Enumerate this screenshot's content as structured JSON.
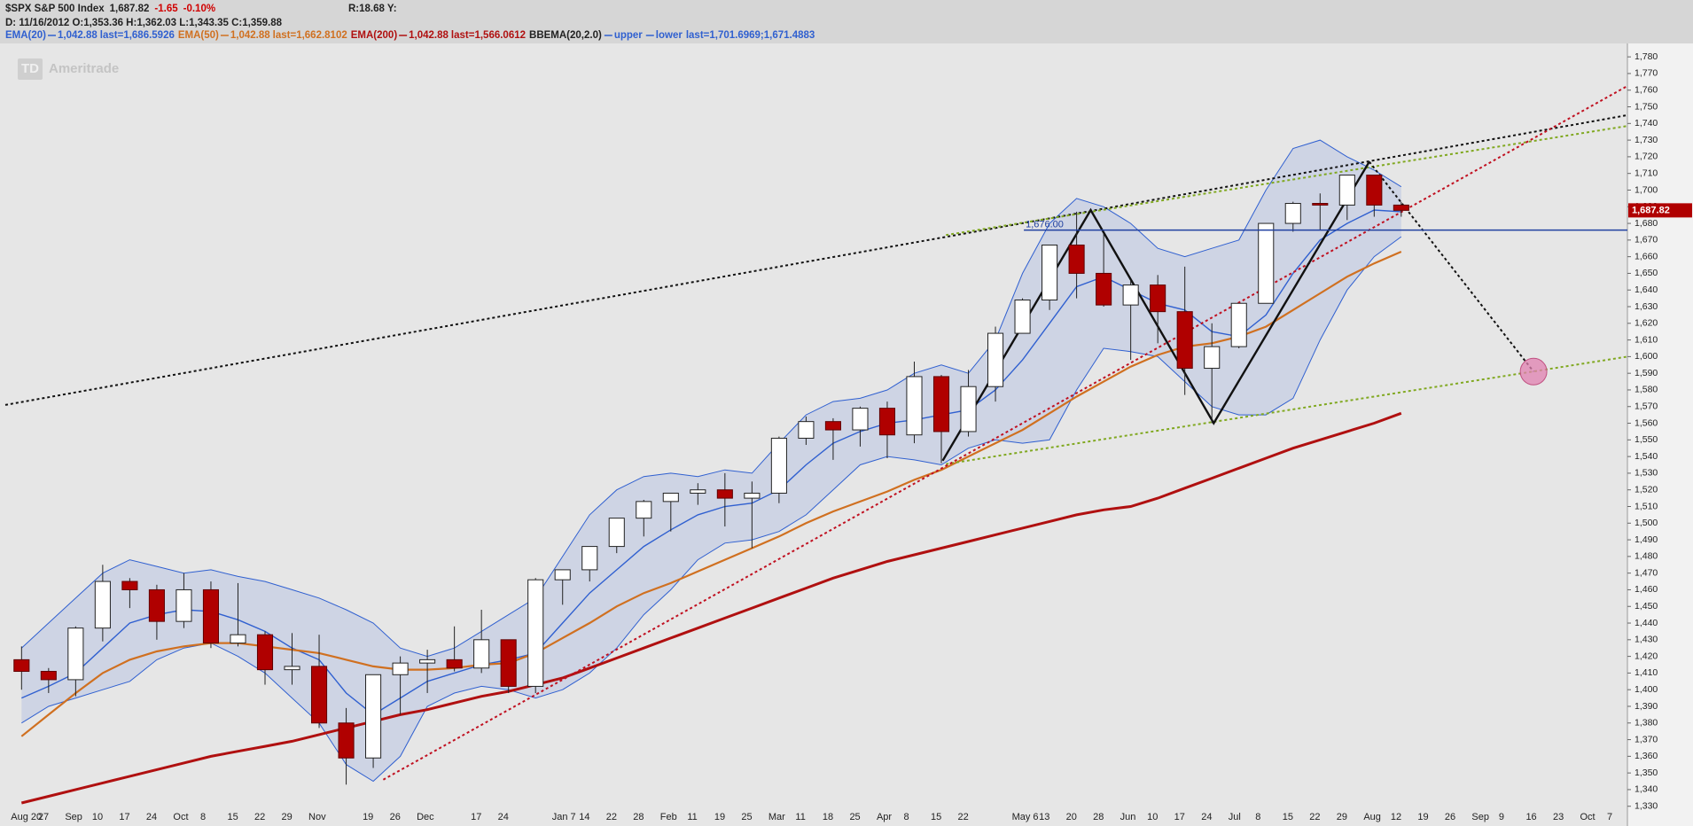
{
  "header": {
    "symbol": "$SPX S&P 500 Index",
    "last": "1,687.82",
    "change": "-1.65",
    "change_pct": "-0.10%",
    "extra": "R:18.68 Y:",
    "detail": "D: 11/16/2012 O:1,353.36 H:1,362.03 L:1,343.35 C:1,359.88"
  },
  "watermark": {
    "logo": "TD",
    "text": "Ameritrade"
  },
  "chart_data": {
    "type": "candlestick",
    "categories": [
      "Aug 20",
      "27",
      "Sep",
      "10",
      "17",
      "24",
      "Oct",
      "8",
      "15",
      "22",
      "29",
      "Nov",
      null,
      "19",
      "26",
      "Dec",
      null,
      "17",
      "24",
      null,
      "Jan 7",
      "14",
      "22",
      "28",
      "Feb",
      "11",
      "19",
      "25",
      "Mar",
      "11",
      "18",
      "25",
      "Apr",
      "8",
      "15",
      "22",
      null,
      "May 6",
      "13",
      "20",
      "28",
      "Jun",
      "10",
      "17",
      "24",
      "Jul",
      "8",
      "15",
      "22",
      "29",
      "Aug",
      "12",
      "19",
      "26",
      "Sep",
      "9",
      "16",
      "23",
      "Oct",
      "7"
    ],
    "xlim": [
      -0.6,
      59.36
    ],
    "ylim": [
      1324,
      1787
    ],
    "yticks": [
      {
        "value": 1330,
        "label": "1,330"
      },
      {
        "value": 1340,
        "label": "1,340"
      },
      {
        "value": 1350,
        "label": "1,350"
      },
      {
        "value": 1360,
        "label": "1,360"
      },
      {
        "value": 1370,
        "label": "1,370"
      },
      {
        "value": 1380,
        "label": "1,380"
      },
      {
        "value": 1390,
        "label": "1,390"
      },
      {
        "value": 1400,
        "label": "1,400"
      },
      {
        "value": 1410,
        "label": "1,410"
      },
      {
        "value": 1420,
        "label": "1,420"
      },
      {
        "value": 1430,
        "label": "1,430"
      },
      {
        "value": 1440,
        "label": "1,440"
      },
      {
        "value": 1450,
        "label": "1,450"
      },
      {
        "value": 1460,
        "label": "1,460"
      },
      {
        "value": 1470,
        "label": "1,470"
      },
      {
        "value": 1480,
        "label": "1,480"
      },
      {
        "value": 1490,
        "label": "1,490"
      },
      {
        "value": 1500,
        "label": "1,500"
      },
      {
        "value": 1510,
        "label": "1,510"
      },
      {
        "value": 1520,
        "label": "1,520"
      },
      {
        "value": 1530,
        "label": "1,530"
      },
      {
        "value": 1540,
        "label": "1,540"
      },
      {
        "value": 1550,
        "label": "1,550"
      },
      {
        "value": 1560,
        "label": "1,560"
      },
      {
        "value": 1570,
        "label": "1,570"
      },
      {
        "value": 1580,
        "label": "1,580"
      },
      {
        "value": 1590,
        "label": "1,590"
      },
      {
        "value": 1600,
        "label": "1,600"
      },
      {
        "value": 1610,
        "label": "1,610"
      },
      {
        "value": 1620,
        "label": "1,620"
      },
      {
        "value": 1630,
        "label": "1,630"
      },
      {
        "value": 1640,
        "label": "1,640"
      },
      {
        "value": 1650,
        "label": "1,650"
      },
      {
        "value": 1660,
        "label": "1,660"
      },
      {
        "value": 1670,
        "label": "1,670"
      },
      {
        "value": 1680,
        "label": "1,680"
      },
      {
        "value": 1690,
        "label": "1,690"
      },
      {
        "value": 1700,
        "label": "1,700"
      },
      {
        "value": 1710,
        "label": "1,710"
      },
      {
        "value": 1720,
        "label": "1,720"
      },
      {
        "value": 1730,
        "label": "1,730"
      },
      {
        "value": 1740,
        "label": "1,740"
      },
      {
        "value": 1750,
        "label": "1,750"
      },
      {
        "value": 1760,
        "label": "1,760"
      },
      {
        "value": 1770,
        "label": "1,770"
      },
      {
        "value": 1780,
        "label": "1,780"
      }
    ],
    "up_color": "#ffffff",
    "down_color": "#b00000",
    "ohlc": {
      "open": [
        1418,
        1411,
        1406,
        1437,
        1465,
        1460,
        1441,
        1460,
        1428,
        1433,
        1412,
        1414,
        1380,
        1359,
        1409,
        1416,
        1418,
        1413,
        1430,
        1402,
        1466,
        1472,
        1486,
        1503,
        1513,
        1518,
        1520,
        1515,
        1518,
        1551,
        1561,
        1556,
        1569,
        1553,
        1588,
        1555,
        1582,
        1614,
        1634,
        1667,
        1650,
        1631,
        1643,
        1627,
        1593,
        1606,
        1632,
        1680,
        1692,
        1691,
        1709,
        1691,
        null,
        null,
        null,
        null,
        null,
        null,
        null,
        null
      ],
      "high": [
        1426,
        1413,
        1438,
        1475,
        1467,
        1463,
        1470,
        1465,
        1464,
        1435,
        1434,
        1433,
        1389,
        1409,
        1420,
        1424,
        1438,
        1448,
        1430,
        1467,
        1472,
        1485,
        1503,
        1514,
        1518,
        1524,
        1530,
        1525,
        1552,
        1564,
        1563,
        1570,
        1573,
        1597,
        1589,
        1592,
        1618,
        1635,
        1667,
        1687,
        1674,
        1646,
        1649,
        1654,
        1620,
        1632,
        1680,
        1693,
        1698,
        1709,
        1709,
        1693,
        null,
        null,
        null,
        null,
        null,
        null,
        null,
        null
      ],
      "low": [
        1400,
        1398,
        1396,
        1429,
        1449,
        1430,
        1437,
        1425,
        1426,
        1403,
        1403,
        1377,
        1343,
        1353,
        1385,
        1398,
        1411,
        1410,
        1398,
        1398,
        1451,
        1465,
        1482,
        1492,
        1495,
        1511,
        1498,
        1485,
        1512,
        1547,
        1538,
        1546,
        1539,
        1548,
        1536,
        1552,
        1573,
        1614,
        1628,
        1635,
        1630,
        1598,
        1608,
        1577,
        1560,
        1605,
        1632,
        1675,
        1676,
        1682,
        1684,
        1684,
        null,
        null,
        null,
        null,
        null,
        null,
        null,
        null
      ],
      "close": [
        1411,
        1406,
        1437,
        1465,
        1460,
        1441,
        1460,
        1428,
        1433,
        1412,
        1414,
        1380,
        1359,
        1409,
        1416,
        1418,
        1413,
        1430,
        1402,
        1466,
        1472,
        1486,
        1503,
        1513,
        1518,
        1520,
        1515,
        1518,
        1551,
        1561,
        1556,
        1569,
        1553,
        1588,
        1555,
        1582,
        1614,
        1634,
        1667,
        1650,
        1631,
        1643,
        1627,
        1593,
        1606,
        1632,
        1680,
        1692,
        1691,
        1709,
        1691,
        1687.82,
        null,
        null,
        null,
        null,
        null,
        null,
        null,
        null
      ]
    },
    "series": [
      {
        "name": "EMA(20)",
        "param": "1,042.88",
        "last": "last=1,686.5926",
        "color": "#3060d0",
        "values": [
          1395,
          1402,
          1410,
          1425,
          1440,
          1445,
          1448,
          1447,
          1442,
          1435,
          1425,
          1418,
          1398,
          1385,
          1395,
          1405,
          1410,
          1415,
          1418,
          1422,
          1440,
          1458,
          1472,
          1486,
          1496,
          1505,
          1510,
          1512,
          1520,
          1535,
          1548,
          1555,
          1560,
          1562,
          1565,
          1568,
          1580,
          1598,
          1620,
          1642,
          1648,
          1640,
          1632,
          1628,
          1615,
          1612,
          1625,
          1650,
          1670,
          1680,
          1688,
          1687,
          null,
          null,
          null,
          null,
          null,
          null,
          null,
          null
        ]
      },
      {
        "name": "EMA(50)",
        "param": "1,042.88",
        "last": "last=1,662.8102",
        "color": "#d07020",
        "values": [
          1372,
          1385,
          1398,
          1410,
          1418,
          1423,
          1426,
          1428,
          1428,
          1426,
          1424,
          1422,
          1418,
          1414,
          1412,
          1412,
          1413,
          1415,
          1416,
          1422,
          1431,
          1440,
          1450,
          1458,
          1464,
          1471,
          1478,
          1485,
          1492,
          1500,
          1507,
          1513,
          1519,
          1526,
          1532,
          1540,
          1548,
          1556,
          1566,
          1576,
          1585,
          1594,
          1601,
          1606,
          1608,
          1612,
          1618,
          1628,
          1638,
          1648,
          1656,
          1663,
          null,
          null,
          null,
          null,
          null,
          null,
          null,
          null
        ]
      },
      {
        "name": "EMA(200)",
        "param": "1,042.88",
        "last": "last=1,566.0612",
        "color": "#b01010",
        "values": [
          1332,
          1336,
          1340,
          1344,
          1348,
          1352,
          1356,
          1360,
          1363,
          1366,
          1369,
          1373,
          1377,
          1381,
          1385,
          1388,
          1392,
          1396,
          1399,
          1403,
          1407,
          1413,
          1419,
          1425,
          1431,
          1437,
          1443,
          1449,
          1455,
          1461,
          1467,
          1472,
          1477,
          1481,
          1485,
          1489,
          1493,
          1497,
          1501,
          1505,
          1508,
          1510,
          1515,
          1521,
          1527,
          1533,
          1539,
          1545,
          1550,
          1555,
          1560,
          1566,
          null,
          null,
          null,
          null,
          null,
          null,
          null,
          null
        ]
      }
    ],
    "bands": {
      "name": "BBEMA(20,2.0)",
      "last": "last=1,701.6969;1,671.4883",
      "fill": "#c8d0e4",
      "series": [
        {
          "name": "upper",
          "color": "#3060d0",
          "values": [
            1425,
            1440,
            1455,
            1470,
            1478,
            1474,
            1470,
            1472,
            1468,
            1465,
            1460,
            1455,
            1448,
            1440,
            1425,
            1420,
            1425,
            1435,
            1445,
            1455,
            1480,
            1505,
            1520,
            1528,
            1530,
            1528,
            1532,
            1530,
            1548,
            1565,
            1573,
            1575,
            1580,
            1590,
            1595,
            1590,
            1610,
            1650,
            1680,
            1695,
            1690,
            1680,
            1665,
            1660,
            1665,
            1670,
            1700,
            1725,
            1730,
            1720,
            1712,
            1702,
            null,
            null,
            null,
            null,
            null,
            null,
            null,
            null
          ]
        },
        {
          "name": "lower",
          "color": "#3060d0",
          "values": [
            1380,
            1390,
            1395,
            1400,
            1405,
            1418,
            1425,
            1428,
            1420,
            1410,
            1395,
            1380,
            1355,
            1345,
            1360,
            1390,
            1398,
            1402,
            1400,
            1395,
            1400,
            1410,
            1425,
            1445,
            1460,
            1478,
            1488,
            1490,
            1495,
            1505,
            1520,
            1535,
            1540,
            1538,
            1535,
            1545,
            1550,
            1548,
            1550,
            1580,
            1605,
            1603,
            1600,
            1585,
            1570,
            1565,
            1565,
            1575,
            1610,
            1640,
            1660,
            1672,
            null,
            null,
            null,
            null,
            null,
            null,
            null,
            null
          ]
        }
      ]
    },
    "lines": [
      {
        "color": "#111111",
        "dashed": true,
        "x": [
          -0.6,
          59.36
        ],
        "y": [
          1571,
          1745
        ]
      },
      {
        "color": "#80a820",
        "dashed": true,
        "x": [
          34.17,
          59.36
        ],
        "y": [
          1673,
          1738.5
        ]
      },
      {
        "color": "#80a820",
        "dashed": true,
        "x": [
          34.17,
          59.36
        ],
        "y": [
          1535.5,
          1600
        ]
      },
      {
        "color": "#c01020",
        "dashed": true,
        "x": [
          13.37,
          59.36
        ],
        "y": [
          1346,
          1762.5
        ]
      },
      {
        "color": "#111111",
        "dashed": true,
        "x": [
          49.82,
          55.89
        ],
        "y": [
          1717,
          1591
        ]
      },
      {
        "color": "#111111",
        "dashed": false,
        "x": [
          34.05,
          39.52,
          44.07,
          49.82
        ],
        "y": [
          1537.5,
          1688,
          1560,
          1717
        ]
      }
    ],
    "level": {
      "value": 1676,
      "label": "1,676.00",
      "x_start": 37.05,
      "color": "#2040a0"
    },
    "marker": {
      "x": 55.89,
      "y": 1591,
      "color": "#e080b0"
    }
  }
}
